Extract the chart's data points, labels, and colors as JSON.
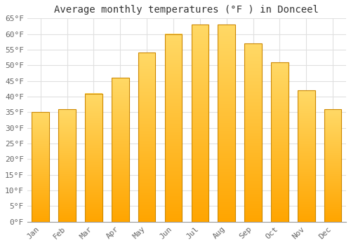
{
  "months": [
    "Jan",
    "Feb",
    "Mar",
    "Apr",
    "May",
    "Jun",
    "Jul",
    "Aug",
    "Sep",
    "Oct",
    "Nov",
    "Dec"
  ],
  "values": [
    35,
    36,
    41,
    46,
    54,
    60,
    63,
    63,
    57,
    51,
    42,
    36
  ],
  "bar_color_top": "#FFD966",
  "bar_color_bottom": "#FFA500",
  "bar_edge_color": "#CC8800",
  "title": "Average monthly temperatures (°F ) in Donceel",
  "ylim": [
    0,
    65
  ],
  "yticks": [
    0,
    5,
    10,
    15,
    20,
    25,
    30,
    35,
    40,
    45,
    50,
    55,
    60,
    65
  ],
  "ytick_labels": [
    "0°F",
    "5°F",
    "10°F",
    "15°F",
    "20°F",
    "25°F",
    "30°F",
    "35°F",
    "40°F",
    "45°F",
    "50°F",
    "55°F",
    "60°F",
    "65°F"
  ],
  "background_color": "#FFFFFF",
  "grid_color": "#E0E0E0",
  "title_fontsize": 10,
  "tick_fontsize": 8,
  "font_family": "monospace",
  "bar_width": 0.65
}
